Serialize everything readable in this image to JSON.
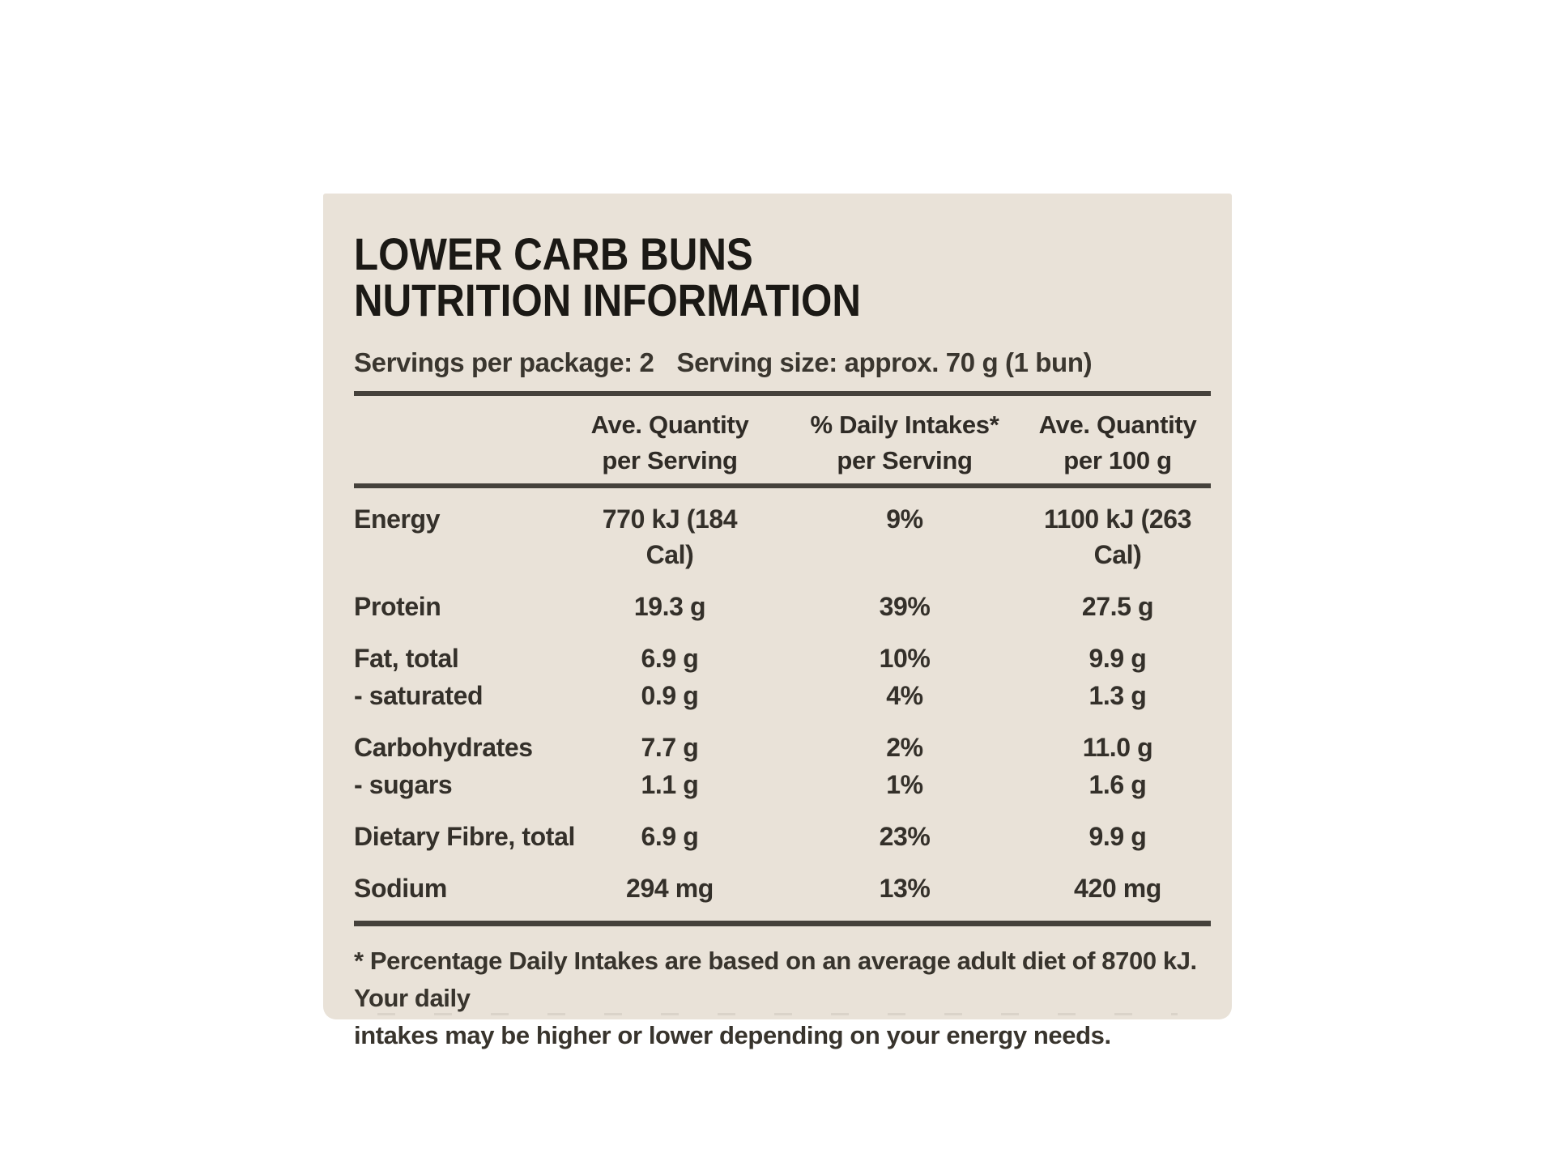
{
  "panel": {
    "title_line1": "LOWER CARB BUNS",
    "title_line2": "NUTRITION INFORMATION",
    "servings_per_package": "Servings per package: 2",
    "serving_size": "Serving size: approx. 70 g (1 bun)",
    "table": {
      "columns": [
        {
          "line1": "Ave. Quantity",
          "line2": "per Serving"
        },
        {
          "line1": "% Daily Intakes*",
          "line2": "per Serving"
        },
        {
          "line1": "Ave. Quantity",
          "line2": "per 100 g"
        }
      ],
      "rows": [
        {
          "label": "Energy",
          "per_serving": "770 kJ (184 Cal)",
          "daily_intake": "9%",
          "per_100g": "1100 kJ (263 Cal)",
          "sub": false
        },
        {
          "label": "Protein",
          "per_serving": "19.3 g",
          "daily_intake": "39%",
          "per_100g": "27.5 g",
          "sub": false
        },
        {
          "label": "Fat, total",
          "per_serving": "6.9 g",
          "daily_intake": "10%",
          "per_100g": "9.9 g",
          "sub": false
        },
        {
          "label": "- saturated",
          "per_serving": "0.9 g",
          "daily_intake": "4%",
          "per_100g": "1.3 g",
          "sub": true
        },
        {
          "label": "Carbohydrates",
          "per_serving": "7.7 g",
          "daily_intake": "2%",
          "per_100g": "11.0 g",
          "sub": false
        },
        {
          "label": "- sugars",
          "per_serving": "1.1 g",
          "daily_intake": "1%",
          "per_100g": "1.6 g",
          "sub": true
        },
        {
          "label": "Dietary Fibre, total",
          "per_serving": "6.9 g",
          "daily_intake": "23%",
          "per_100g": "9.9 g",
          "sub": false
        },
        {
          "label": "Sodium",
          "per_serving": "294 mg",
          "daily_intake": "13%",
          "per_100g": "420 mg",
          "sub": false
        }
      ]
    },
    "footnote_line1": "* Percentage Daily Intakes are based on an average adult diet of 8700 kJ. Your daily",
    "footnote_line2": "intakes may be higher or lower depending on your energy needs.",
    "colors": {
      "panel_bg": "#e9e2d8",
      "text": "#34302a",
      "rule": "#45413b"
    }
  }
}
